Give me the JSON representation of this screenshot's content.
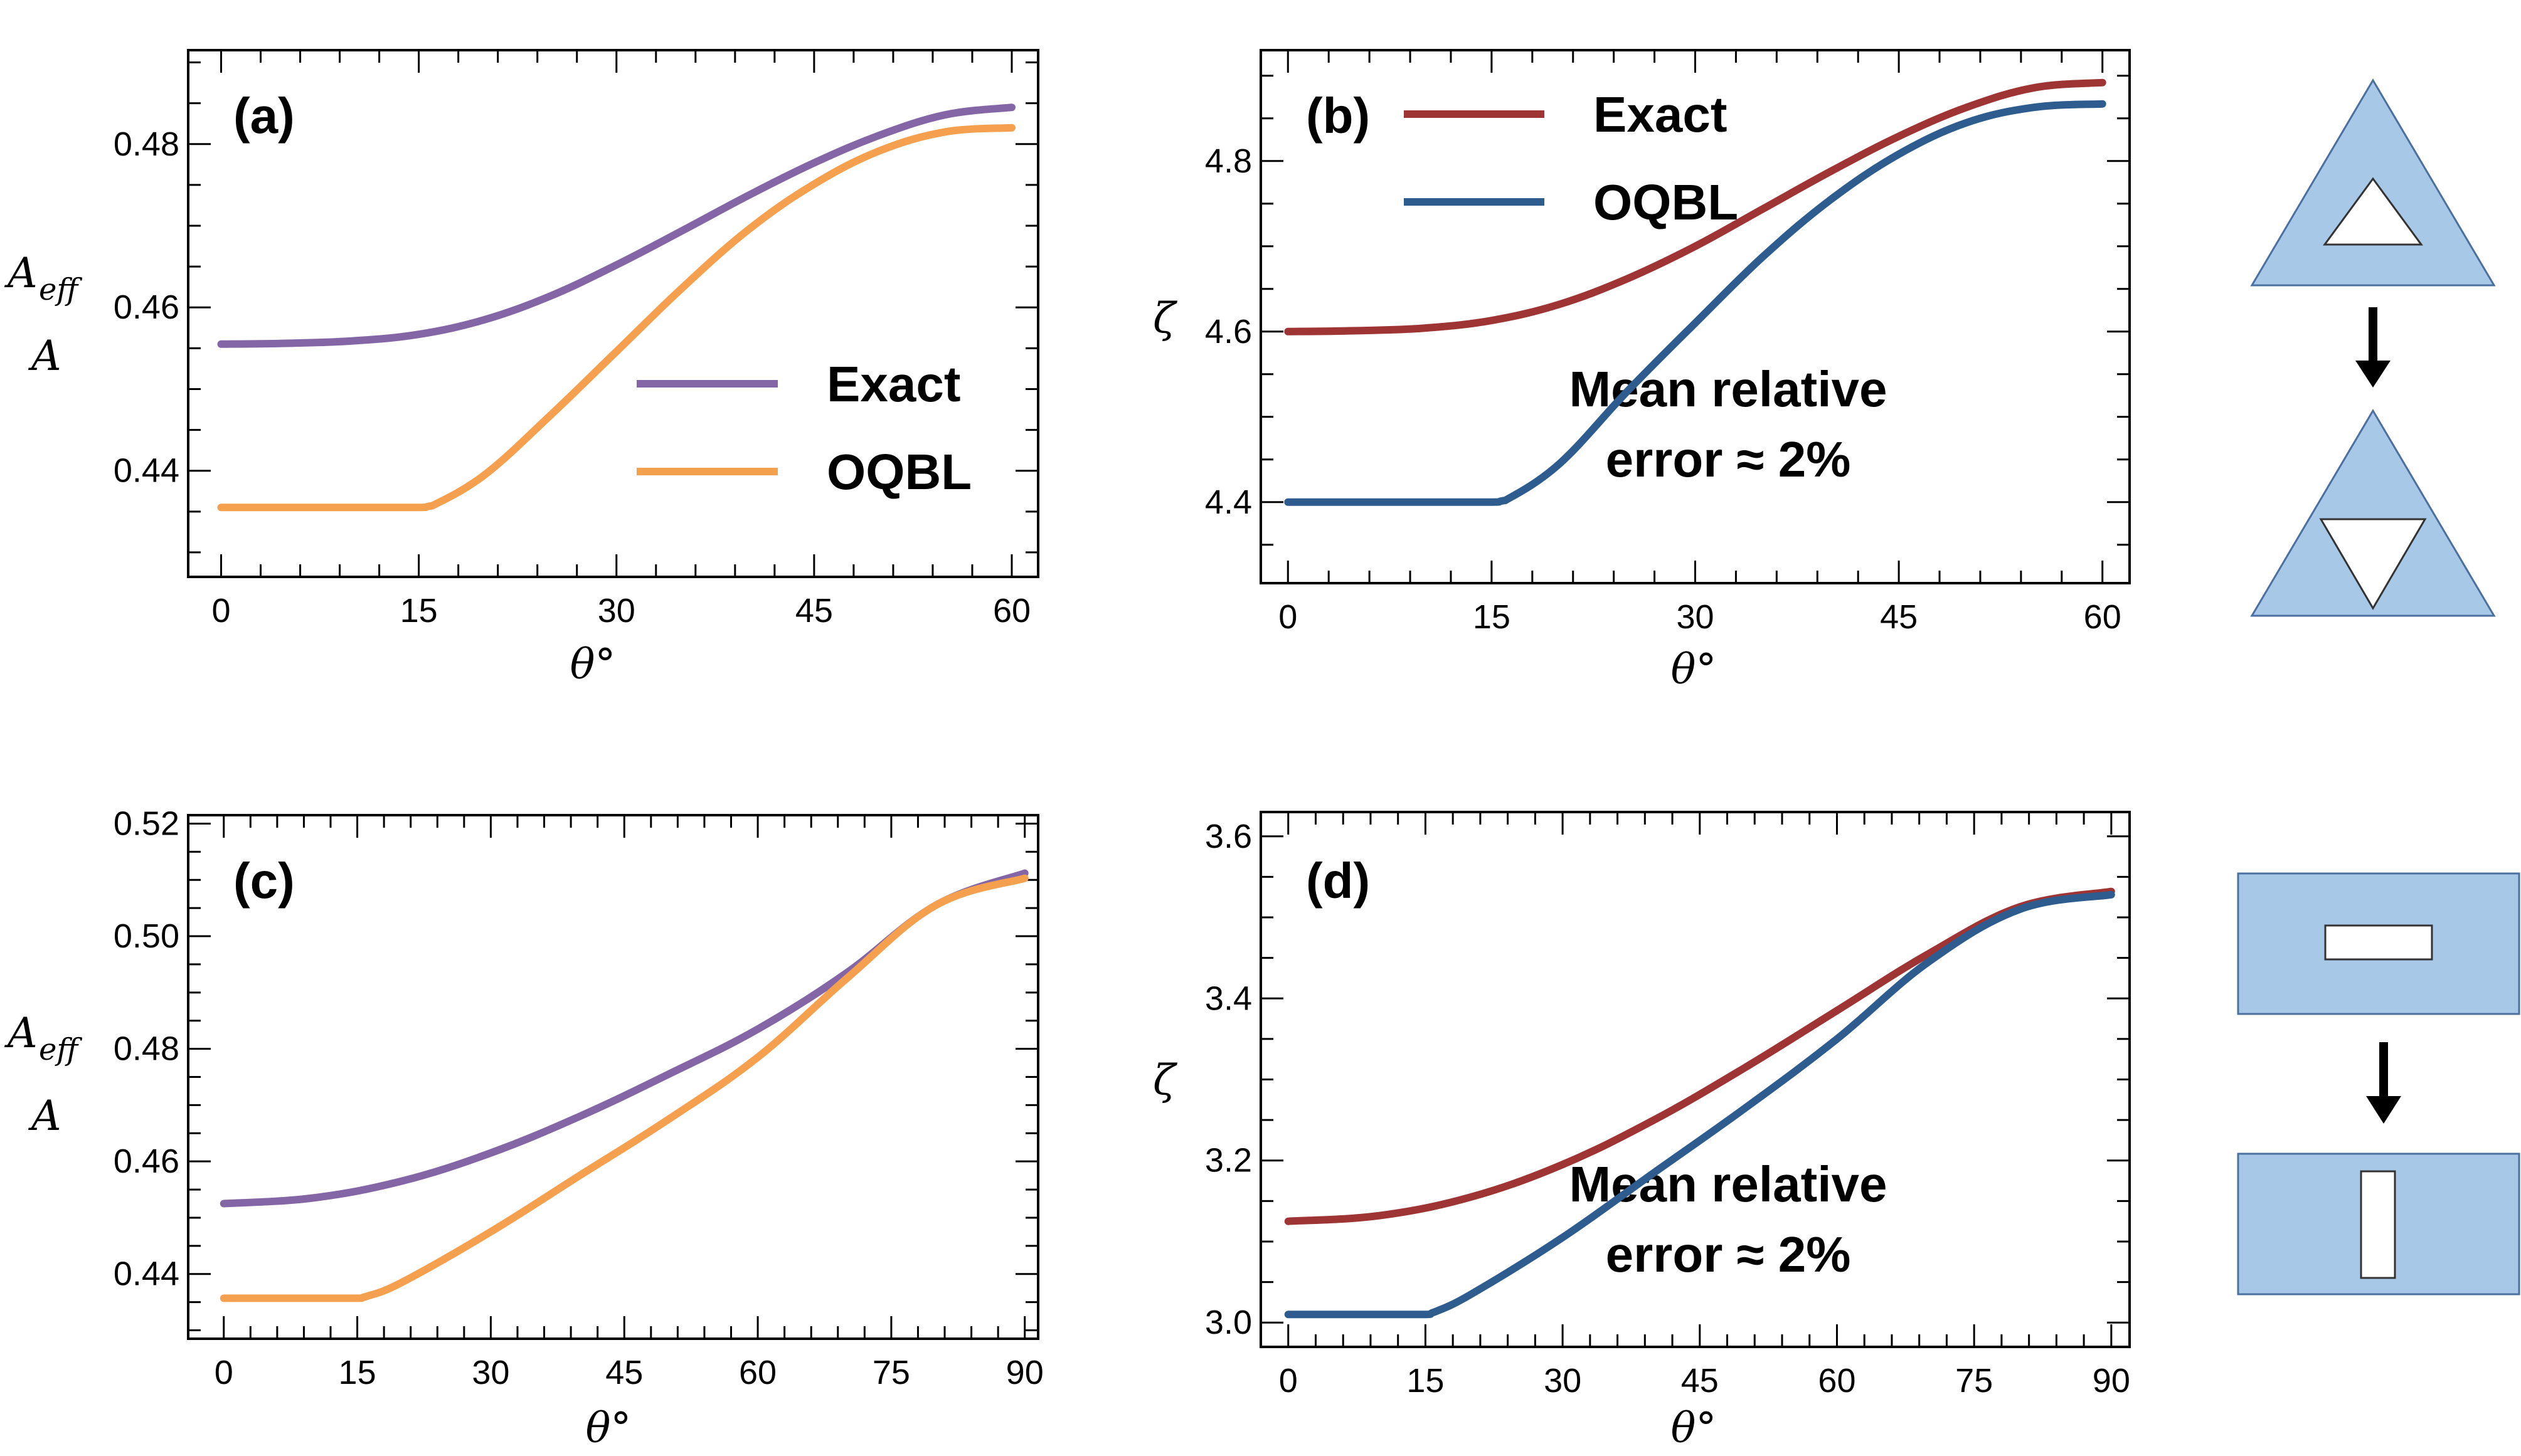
{
  "colors": {
    "exact_left": "#8466a6",
    "oqbl_left": "#f5a04f",
    "exact_right": "#9e3434",
    "oqbl_right": "#2e5c8e",
    "shape_fill": "#a8c8e8",
    "shape_stroke": "#4a6fa0"
  },
  "shape_icons": [
    "triangle-with-triangular-hole",
    "down-arrow-icon",
    "triangle-with-inverted-hole",
    "rectangle-with-horizontal-slot",
    "down-arrow-icon",
    "rectangle-with-vertical-slot"
  ],
  "chart_data": [
    {
      "type": "line",
      "panel_label": "(a)",
      "xlabel": "θ°",
      "ylabel_top": "A",
      "ylabel_sub": "eff",
      "ylabel_bottom": "A",
      "xlim": [
        -2.5,
        62
      ],
      "ylim": [
        0.427,
        0.4915
      ],
      "xticks": [
        0,
        15,
        30,
        45,
        60
      ],
      "yticks": [
        0.44,
        0.46,
        0.48
      ],
      "ytick_labels": [
        "0.44",
        "0.46",
        "0.48"
      ],
      "legend": [
        "Exact",
        "OQBL"
      ],
      "legend_position": "center-right",
      "series": [
        {
          "name": "Exact",
          "x": [
            0,
            5,
            10,
            15,
            20,
            25,
            30,
            35,
            40,
            45,
            50,
            55,
            60
          ],
          "y": [
            0.4555,
            0.4556,
            0.4559,
            0.4567,
            0.4585,
            0.4614,
            0.4652,
            0.4694,
            0.4737,
            0.4777,
            0.4811,
            0.4836,
            0.4845
          ]
        },
        {
          "name": "OQBL",
          "x": [
            0,
            5,
            10,
            15,
            16,
            20,
            25,
            30,
            35,
            40,
            45,
            50,
            55,
            60
          ],
          "y": [
            0.4355,
            0.4355,
            0.4355,
            0.4355,
            0.4357,
            0.4395,
            0.4468,
            0.4546,
            0.4624,
            0.4695,
            0.4751,
            0.4792,
            0.4815,
            0.482
          ]
        }
      ]
    },
    {
      "type": "line",
      "panel_label": "(b)",
      "xlabel": "θ°",
      "ylabel": "ζ",
      "xlim": [
        -2,
        62
      ],
      "ylim": [
        4.305,
        4.93
      ],
      "xticks": [
        0,
        15,
        30,
        45,
        60
      ],
      "yticks": [
        4.4,
        4.6,
        4.8
      ],
      "ytick_labels": [
        "4.4",
        "4.6",
        "4.8"
      ],
      "legend": [
        "Exact",
        "OQBL"
      ],
      "legend_position": "top-left",
      "annotation": [
        "Mean relative",
        "error ≈ 2%"
      ],
      "series": [
        {
          "name": "Exact",
          "x": [
            0,
            5,
            10,
            15,
            20,
            25,
            30,
            35,
            40,
            45,
            50,
            55,
            60
          ],
          "y": [
            4.6,
            4.601,
            4.604,
            4.613,
            4.632,
            4.662,
            4.7,
            4.744,
            4.788,
            4.829,
            4.863,
            4.886,
            4.892
          ]
        },
        {
          "name": "OQBL",
          "x": [
            0,
            5,
            10,
            15,
            16,
            20,
            25,
            30,
            35,
            40,
            45,
            50,
            55,
            60
          ],
          "y": [
            4.4,
            4.4,
            4.4,
            4.4,
            4.402,
            4.445,
            4.53,
            4.61,
            4.688,
            4.755,
            4.808,
            4.845,
            4.863,
            4.867
          ]
        }
      ]
    },
    {
      "type": "line",
      "panel_label": "(c)",
      "xlabel": "θ°",
      "ylabel_top": "A",
      "ylabel_sub": "eff",
      "ylabel_bottom": "A",
      "xlim": [
        -4,
        91.5
      ],
      "ylim": [
        0.4285,
        0.5215
      ],
      "xticks": [
        0,
        15,
        30,
        45,
        60,
        75,
        90
      ],
      "yticks": [
        0.44,
        0.46,
        0.48,
        0.5,
        0.52
      ],
      "ytick_labels": [
        "0.44",
        "0.46",
        "0.48",
        "0.50",
        "0.52"
      ],
      "series": [
        {
          "name": "Exact",
          "x": [
            0,
            10,
            20,
            30,
            40,
            50,
            60,
            70,
            80,
            90
          ],
          "y": [
            0.4525,
            0.4535,
            0.4565,
            0.4615,
            0.468,
            0.4755,
            0.4835,
            0.4935,
            0.5055,
            0.5112
          ]
        },
        {
          "name": "OQBL",
          "x": [
            0,
            10,
            15,
            16,
            20,
            30,
            40,
            50,
            60,
            70,
            80,
            90
          ],
          "y": [
            0.4357,
            0.4357,
            0.4357,
            0.436,
            0.4385,
            0.4475,
            0.4575,
            0.4675,
            0.4785,
            0.4925,
            0.5055,
            0.5103
          ]
        }
      ]
    },
    {
      "type": "line",
      "panel_label": "(d)",
      "xlabel": "θ°",
      "ylabel": "ζ",
      "xlim": [
        -3,
        92
      ],
      "ylim": [
        2.97,
        3.63
      ],
      "xticks": [
        0,
        15,
        30,
        45,
        60,
        75,
        90
      ],
      "yticks": [
        3.0,
        3.2,
        3.4,
        3.6
      ],
      "ytick_labels": [
        "3.0",
        "3.2",
        "3.4",
        "3.6"
      ],
      "annotation": [
        "Mean relative",
        "error ≈ 2%"
      ],
      "series": [
        {
          "name": "Exact",
          "x": [
            0,
            10,
            20,
            30,
            40,
            50,
            60,
            70,
            80,
            90
          ],
          "y": [
            3.125,
            3.132,
            3.155,
            3.195,
            3.25,
            3.315,
            3.385,
            3.455,
            3.513,
            3.532
          ]
        },
        {
          "name": "OQBL",
          "x": [
            0,
            10,
            15,
            16,
            20,
            30,
            40,
            50,
            60,
            70,
            80,
            90
          ],
          "y": [
            3.01,
            3.01,
            3.01,
            3.013,
            3.035,
            3.105,
            3.185,
            3.265,
            3.35,
            3.445,
            3.51,
            3.528
          ]
        }
      ]
    }
  ]
}
